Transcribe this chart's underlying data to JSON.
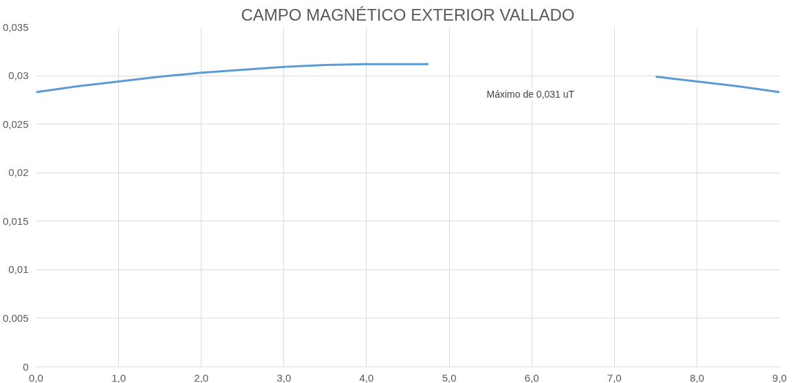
{
  "chart_data": {
    "type": "line",
    "title": "CAMPO MAGNÉTICO EXTERIOR VALLADO",
    "x": [
      0,
      0.5,
      1.0,
      1.5,
      2.0,
      2.5,
      3.0,
      3.5,
      4.0,
      4.5,
      4.75,
      5.0,
      6.0,
      7.0,
      7.5,
      8.0,
      8.5,
      9.0
    ],
    "series": [
      {
        "color": "#5b9bd5",
        "values": [
          0.0283,
          0.0289,
          0.0294,
          0.0299,
          0.0303,
          0.0306,
          0.0309,
          0.0311,
          0.0312,
          0.0312,
          0.0312,
          null,
          null,
          null,
          0.0299,
          0.0294,
          0.0289,
          0.0283
        ]
      }
    ],
    "annotations": [
      "Máximo de 0,031 uT"
    ],
    "xlim": [
      0,
      9
    ],
    "xticks": [
      {
        "value": 0,
        "label": "0,0"
      },
      {
        "value": 1,
        "label": "1,0"
      },
      {
        "value": 2,
        "label": "2,0"
      },
      {
        "value": 3,
        "label": "3,0"
      },
      {
        "value": 4,
        "label": "4,0"
      },
      {
        "value": 5,
        "label": "5,0"
      },
      {
        "value": 6,
        "label": "6,0"
      },
      {
        "value": 7,
        "label": "7,0"
      },
      {
        "value": 8,
        "label": "8,0"
      },
      {
        "value": 9,
        "label": "9,0"
      }
    ],
    "ylim": [
      0,
      0.035
    ],
    "yticks": [
      0,
      {
        "value": 0.005,
        "label": "0,005"
      },
      {
        "value": 0.01,
        "label": "0,01"
      },
      {
        "value": 0.015,
        "label": "0,015"
      },
      {
        "value": 0.02,
        "label": "0,02"
      },
      {
        "value": 0.025,
        "label": "0,025"
      },
      {
        "value": 0.03,
        "label": "0,03"
      },
      {
        "value": 0.035,
        "label": "0,035"
      }
    ],
    "grid": true
  }
}
